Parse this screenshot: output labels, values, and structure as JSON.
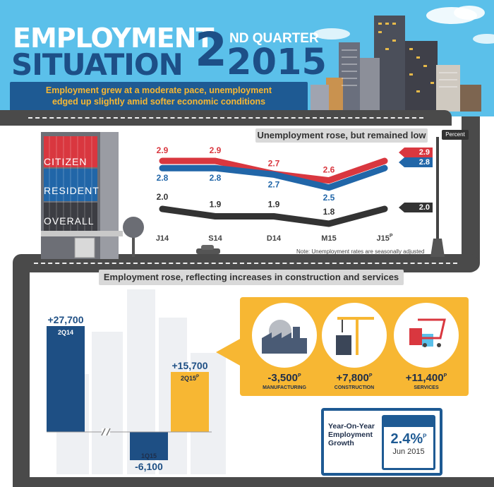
{
  "header": {
    "title_line1": "EMPLOYMENT",
    "title_line2": "SITUATION",
    "title_num": "2",
    "title_quarter": "ND QUARTER",
    "title_year": "2015",
    "subtitle_line1": "Employment grew at a moderate pace, unemployment",
    "subtitle_line2": "edged up slightly amid softer economic conditions"
  },
  "colors": {
    "sky": "#5bc0ea",
    "navy": "#1e5a93",
    "red": "#d9373f",
    "blue": "#2166a8",
    "dark": "#333333",
    "yellow": "#f7b733",
    "road": "#4a4a4a"
  },
  "building_labels": [
    "CITIZEN",
    "RESIDENT",
    "OVERALL"
  ],
  "chart_data": [
    {
      "type": "line",
      "title": "Unemployment rose, but remained low",
      "unit_label": "Percent",
      "categories": [
        "J14",
        "S14",
        "D14",
        "M15",
        "J15"
      ],
      "last_category_superscript": "P",
      "series": [
        {
          "name": "CITIZEN",
          "color": "#d9373f",
          "values": [
            2.9,
            2.9,
            2.7,
            2.6,
            2.9
          ],
          "labels": [
            "2.9",
            "2.9",
            "2.7",
            "2.6",
            "2.9"
          ]
        },
        {
          "name": "RESIDENT",
          "color": "#2166a8",
          "values": [
            2.8,
            2.8,
            2.7,
            2.5,
            2.8
          ],
          "labels": [
            "2.8",
            "2.8",
            "2.7",
            "2.5",
            "2.8"
          ]
        },
        {
          "name": "OVERALL",
          "color": "#333333",
          "values": [
            2.0,
            1.9,
            1.9,
            1.8,
            2.0
          ],
          "labels": [
            "2.0",
            "1.9",
            "1.9",
            "1.8",
            "2.0"
          ]
        }
      ],
      "note": "Note: Unemployment rates are seasonally adjusted"
    },
    {
      "type": "bar",
      "title": "Employment rose, reflecting increases in construction and services",
      "categories": [
        "2Q14",
        "1Q15",
        "2Q15"
      ],
      "values": [
        27700,
        -6100,
        15700
      ],
      "value_labels": [
        "+27,700",
        "-6,100",
        "+15,700"
      ],
      "last_category_superscript": "P",
      "colors": [
        "#1e4f84",
        "#1e4f84",
        "#f7b733"
      ],
      "axis_break": true
    }
  ],
  "sectors": [
    {
      "value": "-3,500",
      "sup": "P",
      "label": "MANUFACTURING",
      "icon": "factory-icon"
    },
    {
      "value": "+7,800",
      "sup": "P",
      "label": "CONSTRUCTION",
      "icon": "crane-icon"
    },
    {
      "value": "+11,400",
      "sup": "P",
      "label": "SERVICES",
      "icon": "shopping-cart-icon"
    }
  ],
  "yoy": {
    "label_line1": "Year-On-Year",
    "label_line2": "Employment",
    "label_line3": "Growth",
    "value": "2.4%",
    "sup": "P",
    "period": "Jun 2015"
  }
}
